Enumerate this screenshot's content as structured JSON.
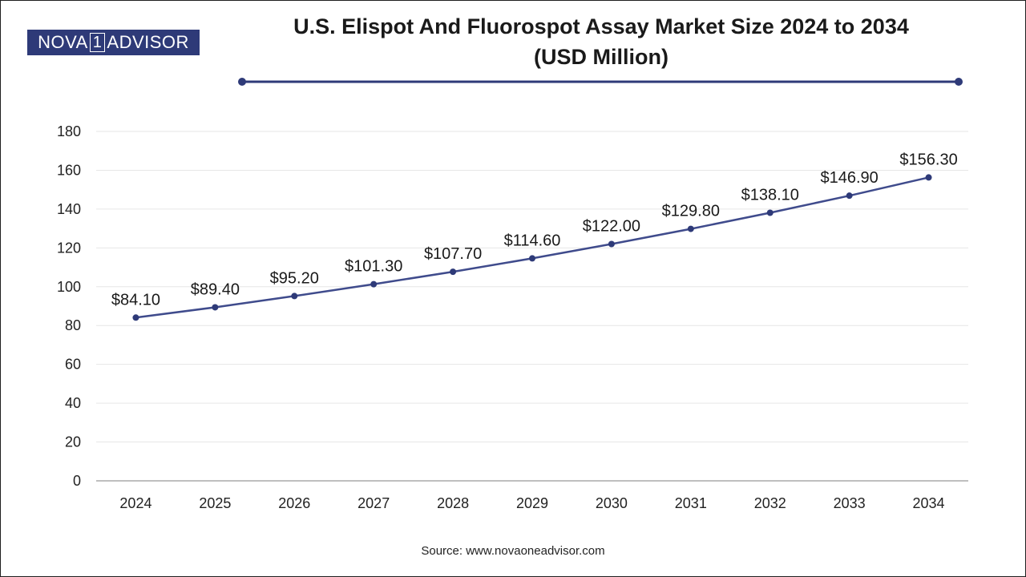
{
  "logo": {
    "pre": "NOVA",
    "num": "1",
    "post": "ADVISOR"
  },
  "title": {
    "line1": "U.S. Elispot And Fluorospot Assay Market Size 2024 to 2034",
    "line2": "(USD Million)"
  },
  "source": "Source: www.novaoneadvisor.com",
  "colors": {
    "line": "#3f4b8c",
    "marker": "#2e3a78",
    "brand": "#2e3a78",
    "grid": "#e6e6e6",
    "axis": "#999999"
  },
  "chart_data": {
    "type": "line",
    "title": "U.S. Elispot And Fluorospot Assay Market Size 2024 to 2034 (USD Million)",
    "x": [
      "2024",
      "2025",
      "2026",
      "2027",
      "2028",
      "2029",
      "2030",
      "2031",
      "2032",
      "2033",
      "2034"
    ],
    "values": [
      84.1,
      89.4,
      95.2,
      101.3,
      107.7,
      114.6,
      122.0,
      129.8,
      138.1,
      146.9,
      156.3
    ],
    "data_labels": [
      "$84.10",
      "$89.40",
      "$95.20",
      "$101.30",
      "$107.70",
      "$114.60",
      "$122.00",
      "$129.80",
      "$138.10",
      "$146.90",
      "$156.30"
    ],
    "yticks": [
      0,
      20,
      40,
      60,
      80,
      100,
      120,
      140,
      160,
      180
    ],
    "ylim": [
      0,
      180
    ],
    "grid": true,
    "legend": "none"
  }
}
